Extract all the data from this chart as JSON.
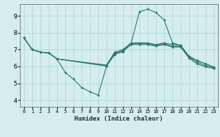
{
  "bg_color": "#d5eeed",
  "grid_color": "#b8d8d8",
  "line_color": "#2d7a70",
  "xlabel": "Humidex (Indice chaleur)",
  "xlim": [
    -0.5,
    23.5
  ],
  "ylim": [
    3.6,
    9.7
  ],
  "xticks": [
    0,
    1,
    2,
    3,
    4,
    5,
    6,
    7,
    8,
    9,
    10,
    11,
    12,
    13,
    14,
    15,
    16,
    17,
    18,
    19,
    20,
    21,
    22,
    23
  ],
  "yticks": [
    4,
    5,
    6,
    7,
    8,
    9
  ],
  "series": [
    {
      "x": [
        0,
        1,
        2,
        3,
        4,
        5,
        6,
        7,
        8,
        9,
        10,
        11,
        12,
        13,
        14,
        15,
        16,
        17,
        18,
        19,
        20,
        21,
        22,
        23
      ],
      "y": [
        7.7,
        7.0,
        6.85,
        6.8,
        6.45,
        5.65,
        5.25,
        4.75,
        4.5,
        4.3,
        6.0,
        6.8,
        6.85,
        7.4,
        9.25,
        9.4,
        9.2,
        8.75,
        7.4,
        7.25,
        6.6,
        6.35,
        6.15,
        5.97
      ]
    },
    {
      "x": [
        0,
        1,
        2,
        3,
        4,
        10,
        11,
        12,
        13,
        14,
        15,
        16,
        17,
        18,
        19,
        20,
        21,
        22,
        23
      ],
      "y": [
        7.7,
        7.0,
        6.85,
        6.8,
        6.45,
        6.08,
        6.85,
        7.0,
        7.4,
        7.4,
        7.4,
        7.3,
        7.4,
        7.3,
        7.25,
        6.6,
        6.35,
        6.15,
        5.97
      ]
    },
    {
      "x": [
        0,
        1,
        2,
        3,
        4,
        10,
        11,
        12,
        13,
        14,
        15,
        16,
        17,
        18,
        19,
        20,
        21,
        22,
        23
      ],
      "y": [
        7.7,
        7.0,
        6.85,
        6.8,
        6.45,
        6.05,
        6.75,
        6.95,
        7.35,
        7.35,
        7.35,
        7.25,
        7.35,
        7.2,
        7.2,
        6.55,
        6.25,
        6.05,
        5.92
      ]
    },
    {
      "x": [
        0,
        1,
        2,
        3,
        4,
        10,
        11,
        12,
        13,
        14,
        15,
        16,
        17,
        18,
        19,
        20,
        21,
        22,
        23
      ],
      "y": [
        7.7,
        7.0,
        6.85,
        6.8,
        6.45,
        6.02,
        6.7,
        6.9,
        7.3,
        7.3,
        7.3,
        7.2,
        7.3,
        7.15,
        7.15,
        6.5,
        6.15,
        5.98,
        5.88
      ]
    }
  ]
}
